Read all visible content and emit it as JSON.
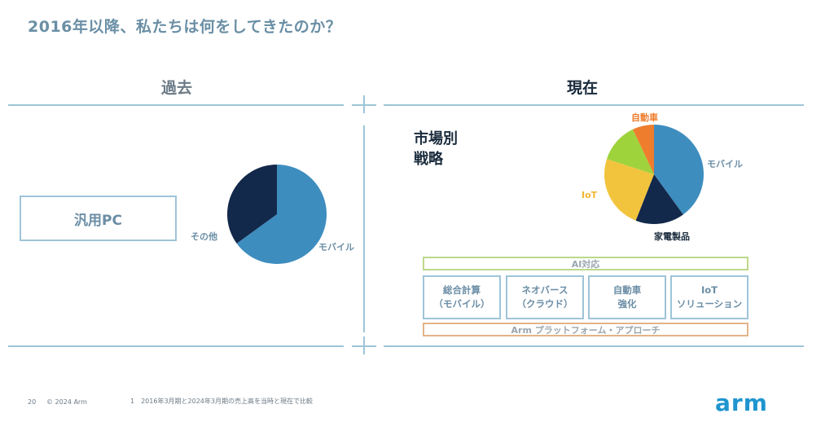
{
  "slide": {
    "title": "2016年以降、私たちは何をしてきたのか？",
    "past_heading": "過去",
    "present_heading": "現在",
    "past_box": "汎用PC",
    "strategy_line1": "市場別",
    "strategy_line2": "戦略",
    "ai_bar": "AI対応",
    "arm_bar": "Arm プラットフォーム・アプローチ",
    "solution_boxes": [
      {
        "line1": "総合計算",
        "line2": "（モバイル）"
      },
      {
        "line1": "ネオバース",
        "line2": "（クラウド）"
      },
      {
        "line1": "自動車",
        "line2": "強化"
      },
      {
        "line1": "IoT",
        "line2": "ソリューション"
      }
    ],
    "footer": {
      "page_number": "20",
      "copyright": "© 2024 Arm",
      "footnote": "1　2016年3月期と2024年3月期の売上高を当時と現在で比較"
    },
    "logo_text": "arm"
  },
  "chart_data": [
    {
      "type": "pie",
      "slices": [
        {
          "label": "モバイル",
          "value": 65,
          "color": "#3e8dbf"
        },
        {
          "label": "その他",
          "value": 35,
          "color": "#13294b"
        }
      ]
    },
    {
      "type": "pie",
      "slices": [
        {
          "label": "モバイル",
          "value": 40,
          "color": "#3e8dbf"
        },
        {
          "label": "家電製品",
          "value": 16,
          "color": "#13294b"
        },
        {
          "label": "IoT",
          "value": 24,
          "color": "#f2c43e"
        },
        {
          "label": "",
          "value": 13,
          "color": "#9fd33c"
        },
        {
          "label": "自動車",
          "value": 7,
          "color": "#ef7d2e"
        }
      ]
    }
  ],
  "colors": {
    "accent_blue": "#3e8dbf",
    "navy": "#13294b",
    "line": "#9ec4d8",
    "ai_green": "#bcd88a",
    "arm_orange": "#e3b48a",
    "auto_label": "#ef7d2e",
    "iot_label": "#f2b632"
  }
}
